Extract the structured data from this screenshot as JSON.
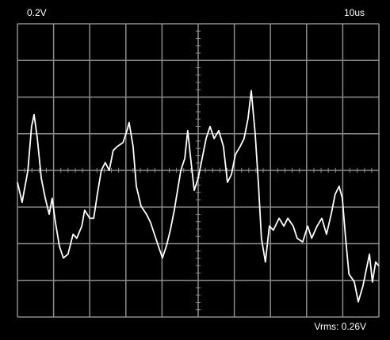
{
  "chart_data": {
    "type": "line",
    "volts_label": "0.2V",
    "time_label": "10us",
    "annotation": "Vrms: 0.26V",
    "color": "#ffffff",
    "grid": true,
    "grid_color": "#8c8c8c",
    "xlim": [
      0,
      100
    ],
    "xticks": [
      0,
      10,
      20,
      30,
      40,
      50,
      60,
      70,
      80,
      90,
      100
    ],
    "ylim": [
      -0.8,
      0.8
    ],
    "yticks": [
      -0.8,
      -0.6,
      -0.4,
      -0.2,
      0,
      0.2,
      0.4,
      0.6,
      0.8
    ],
    "x": [
      0.0,
      1.3,
      2.9,
      3.9,
      4.6,
      5.5,
      6.6,
      7.7,
      8.8,
      9.6,
      10.5,
      11.6,
      12.7,
      14.0,
      15.4,
      16.4,
      17.8,
      18.6,
      20.0,
      21.1,
      22.1,
      23.2,
      24.3,
      25.4,
      26.5,
      27.6,
      29.2,
      30.3,
      30.9,
      32.0,
      32.9,
      34.2,
      35.7,
      36.8,
      37.9,
      39.0,
      40.1,
      41.2,
      42.3,
      43.4,
      45.2,
      46.3,
      47.1,
      47.8,
      48.9,
      50.0,
      51.1,
      52.2,
      53.3,
      54.4,
      55.7,
      57.0,
      58.1,
      59.2,
      60.3,
      61.6,
      62.7,
      63.8,
      64.7,
      65.8,
      66.7,
      67.5,
      68.6,
      69.7,
      70.8,
      72.4,
      73.7,
      74.8,
      76.3,
      77.4,
      78.9,
      80.3,
      81.4,
      82.9,
      84.2,
      85.5,
      86.8,
      87.9,
      89.0,
      89.9,
      90.8,
      91.7,
      93.2,
      94.3,
      95.6,
      96.5,
      97.4,
      98.2,
      99.1,
      100
    ],
    "values": [
      -0.065,
      -0.174,
      0,
      0.239,
      0.304,
      0.174,
      -0.043,
      -0.152,
      -0.239,
      -0.152,
      -0.283,
      -0.413,
      -0.478,
      -0.457,
      -0.348,
      -0.37,
      -0.304,
      -0.217,
      -0.261,
      -0.261,
      -0.13,
      0,
      0.043,
      0,
      0.109,
      0.13,
      0.152,
      0.217,
      0.261,
      0.13,
      -0.087,
      -0.196,
      -0.239,
      -0.283,
      -0.348,
      -0.413,
      -0.478,
      -0.413,
      -0.326,
      -0.217,
      0,
      0.065,
      0.217,
      0.087,
      -0.109,
      -0.043,
      0.065,
      0.174,
      0.239,
      0.174,
      0.217,
      0.13,
      -0.065,
      -0.022,
      0.087,
      0.13,
      0.174,
      0.283,
      0.435,
      0.196,
      -0.087,
      -0.37,
      -0.5,
      -0.304,
      -0.326,
      -0.261,
      -0.304,
      -0.261,
      -0.304,
      -0.37,
      -0.391,
      -0.304,
      -0.37,
      -0.304,
      -0.261,
      -0.348,
      -0.239,
      -0.13,
      -0.087,
      -0.152,
      -0.37,
      -0.565,
      -0.609,
      -0.717,
      -0.63,
      -0.543,
      -0.457,
      -0.609,
      -0.5,
      -0.522
    ]
  }
}
